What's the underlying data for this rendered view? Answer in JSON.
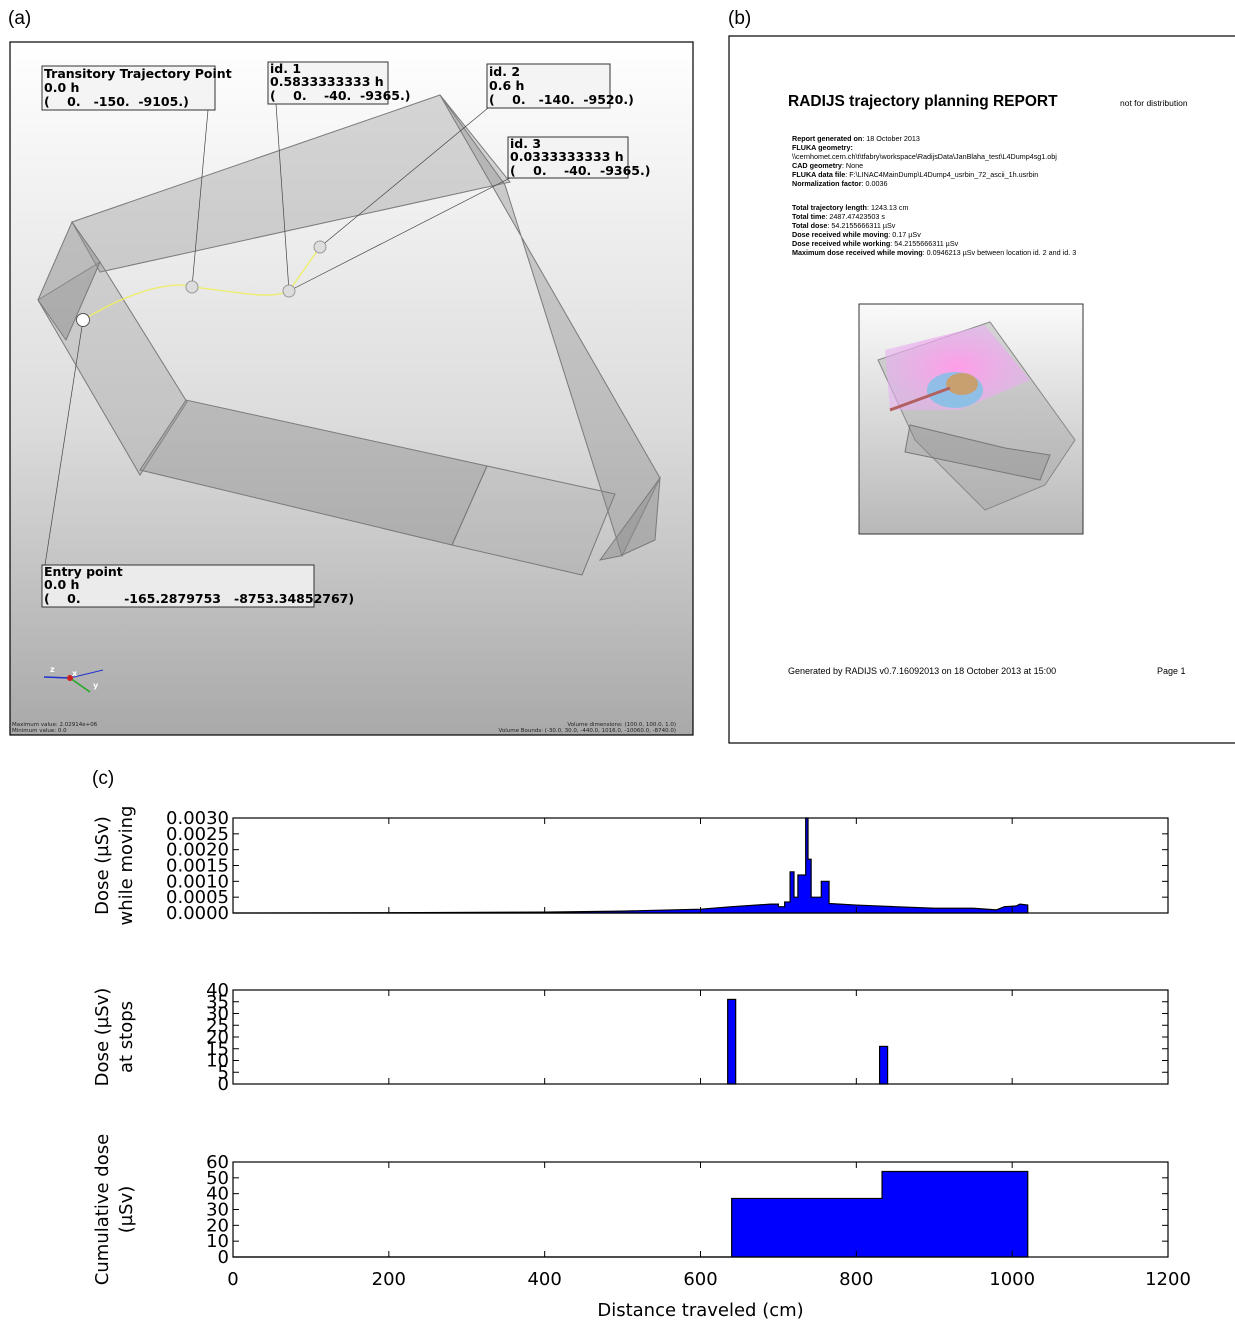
{
  "panel_a": {
    "label": "(a)",
    "callouts": [
      {
        "title": "Transitory Trajectory Point",
        "time": "0.0 h",
        "coords": "(    0.   -150.  -9105.)"
      },
      {
        "title": "id. 1",
        "time": "0.5833333333 h",
        "coords": "(    0.    -40.  -9365.)"
      },
      {
        "title": "id. 2",
        "time": "0.6 h",
        "coords": "(    0.   -140.  -9520.)"
      },
      {
        "title": "id. 3",
        "time": "0.0333333333 h",
        "coords": "(    0.    -40.  -9365.)"
      },
      {
        "title": "Entry point",
        "time": "0.0 h",
        "coords": "(    0.          -165.2879753   -8753.34852767)"
      }
    ],
    "axes": [
      "z",
      "x",
      "y"
    ],
    "status_left": [
      "Maximum value: 2.02914e+06",
      "Minimum value: 0.0"
    ],
    "status_right": [
      "Volume dimensions: (100.0, 100.0, 1.0)",
      "Volume Bounds: (-30.0, 30.0, -440.0, 1016.0, -10060.0, -8740.0)"
    ]
  },
  "panel_b": {
    "label": "(b)",
    "title": "RADIJS trajectory planning REPORT",
    "note": "not for distribution",
    "rows": [
      {
        "label": "Report generated on",
        "value": ": 18 October 2013"
      },
      {
        "label": "FLUKA geometry",
        "value": ":"
      },
      {
        "label": "",
        "value": "\\\\cernhomet.cern.ch\\t\\tfabry\\workspace\\RadijsData\\JanBlaha_test\\L4Dump4sg1.obj"
      },
      {
        "label": "CAD geometry",
        "value": ": None"
      },
      {
        "label": "FLUKA data file",
        "value": ": F:\\LINAC4MainDump\\L4Dump4_usrbin_72_ascii_1h.usrbin"
      },
      {
        "label": "Normalization factor",
        "value": ": 0.0036"
      },
      {
        "label": "Total trajectory length",
        "value": ": 1243.13 cm"
      },
      {
        "label": "Total time",
        "value": ": 2487.47423503 s"
      },
      {
        "label": "Total dose",
        "value": ": 54.2155666311 µSv"
      },
      {
        "label": "Dose received while moving",
        "value": ": 0.17 µSv"
      },
      {
        "label": "Dose received while working",
        "value": ": 54.2155666311 µSv"
      },
      {
        "label": "Maximum dose received while moving",
        "value": ": 0.0946213 µSv between location id. 2 and id. 3"
      }
    ],
    "footer": "Generated by RADIJS v0.7.16092013 on 18 October 2013 at 15:00",
    "page": "Page 1"
  },
  "panel_c_label": "(c)",
  "chart_data": [
    {
      "type": "area",
      "ylabel": [
        "Dose (µSv)",
        "while moving"
      ],
      "color": "#0000ff",
      "x": [
        0,
        200,
        400,
        500,
        600,
        640,
        690,
        700,
        700,
        708,
        708,
        715,
        715,
        720,
        720,
        725,
        725,
        735,
        735,
        738,
        738,
        742,
        742,
        755,
        755,
        765,
        765,
        800,
        850,
        900,
        950,
        980,
        990,
        1005,
        1010,
        1020,
        1020
      ],
      "values": [
        0,
        1e-05,
        3e-05,
        6e-05,
        0.00012,
        0.0002,
        0.00028,
        0.00028,
        0.0002,
        0.0002,
        0.00035,
        0.00035,
        0.0013,
        0.0013,
        0.0005,
        0.0005,
        0.0012,
        0.0012,
        0.003,
        0.003,
        0.0017,
        0.0017,
        0.0005,
        0.0005,
        0.001,
        0.001,
        0.0003,
        0.00025,
        0.0002,
        0.00015,
        0.00015,
        0.0001,
        0.0002,
        0.00022,
        0.00028,
        0.00025,
        0
      ],
      "xlim": [
        0,
        1200
      ],
      "ylim": [
        0,
        0.003
      ],
      "yticks": [
        {
          "value": 0,
          "label": "0.0000"
        },
        {
          "value": 0.0005,
          "label": "0.0005"
        },
        {
          "value": 0.001,
          "label": "0.0010"
        },
        {
          "value": 0.0015,
          "label": "0.0015"
        },
        {
          "value": 0.002,
          "label": "0.0020"
        },
        {
          "value": 0.0025,
          "label": "0.0025"
        },
        {
          "value": 0.003,
          "label": "0.0030"
        }
      ]
    },
    {
      "type": "bar",
      "ylabel": [
        "Dose (µSv)",
        "at stops"
      ],
      "color": "#0000ff",
      "x": [
        640,
        835
      ],
      "values": [
        36,
        16
      ],
      "xlim": [
        0,
        1200
      ],
      "ylim": [
        0,
        40
      ],
      "yticks": [
        0,
        5,
        10,
        15,
        20,
        25,
        30,
        35,
        40
      ]
    },
    {
      "type": "area",
      "ylabel": [
        "Cumulative dose",
        "(µSv)"
      ],
      "xlabel": "Distance traveled (cm)",
      "color": "#0000ff",
      "x": [
        0,
        640,
        640,
        833,
        833,
        1020,
        1020
      ],
      "values": [
        0,
        0,
        37,
        37,
        54,
        54,
        0
      ],
      "xlim": [
        0,
        1200
      ],
      "ylim": [
        0,
        60
      ],
      "yticks": [
        0,
        10,
        20,
        30,
        40,
        50,
        60
      ],
      "xticks": [
        0,
        200,
        400,
        600,
        800,
        1000,
        1200
      ]
    }
  ]
}
